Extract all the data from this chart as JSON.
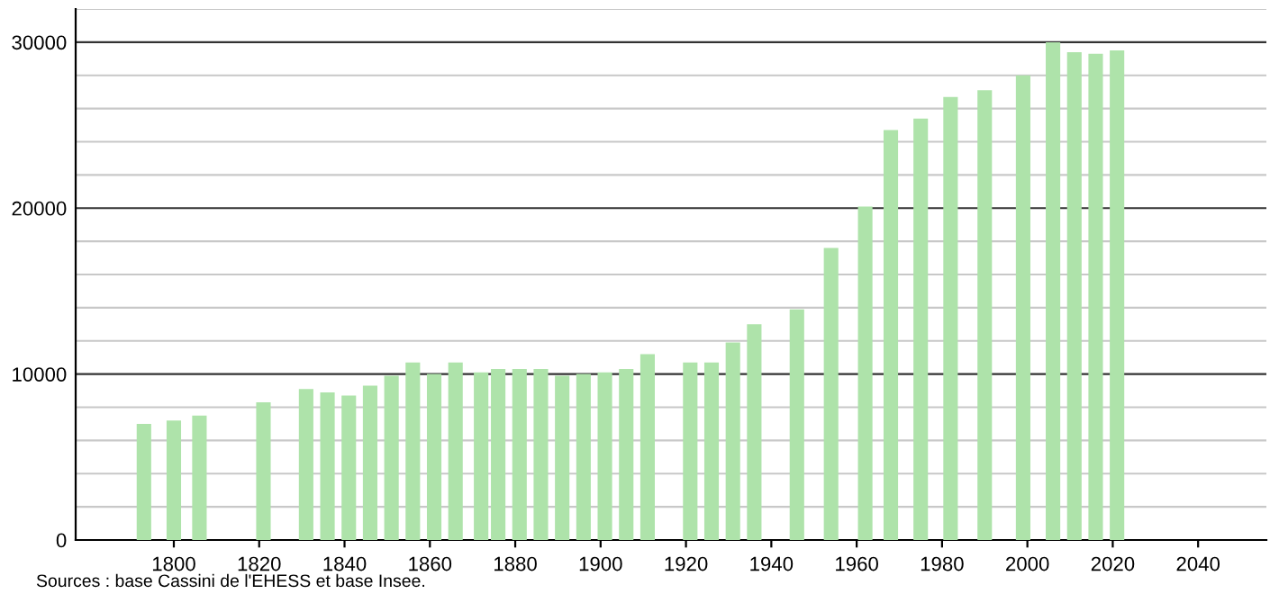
{
  "chart_data": {
    "type": "bar",
    "color": "#aee3aa",
    "x": [
      1793,
      1800,
      1806,
      1821,
      1831,
      1836,
      1841,
      1846,
      1851,
      1856,
      1861,
      1866,
      1872,
      1876,
      1881,
      1886,
      1891,
      1896,
      1901,
      1906,
      1911,
      1921,
      1926,
      1931,
      1936,
      1946,
      1954,
      1962,
      1968,
      1975,
      1982,
      1990,
      1999,
      2006,
      2011,
      2016,
      2021
    ],
    "values": [
      7000,
      7200,
      7500,
      8300,
      9100,
      8900,
      8700,
      9300,
      9900,
      10700,
      10000,
      10700,
      10100,
      10300,
      10300,
      10300,
      9900,
      10000,
      10100,
      10300,
      11200,
      10700,
      10700,
      11900,
      13000,
      13900,
      17600,
      20100,
      24700,
      25400,
      26700,
      27100,
      28000,
      30000,
      29400,
      29300,
      29500
    ],
    "xlim": [
      1777,
      2056
    ],
    "xticks": [
      1800,
      1820,
      1840,
      1860,
      1880,
      1900,
      1920,
      1940,
      1960,
      1980,
      2000,
      2020,
      2040
    ],
    "ylim": [
      0,
      32000
    ],
    "yticks": [
      0,
      {
        "value": 2000,
        "label": null
      },
      {
        "value": 4000,
        "label": null
      },
      {
        "value": 6000,
        "label": null
      },
      {
        "value": 8000,
        "label": null
      },
      10000,
      {
        "value": 12000,
        "label": null
      },
      {
        "value": 14000,
        "label": null
      },
      {
        "value": 16000,
        "label": null
      },
      {
        "value": 18000,
        "label": null
      },
      20000,
      {
        "value": 22000,
        "label": null
      },
      {
        "value": 24000,
        "label": null
      },
      {
        "value": 26000,
        "label": null
      },
      {
        "value": 28000,
        "label": null
      },
      30000,
      {
        "value": 32000,
        "label": null
      }
    ],
    "grid": "y",
    "annotations": [
      "Sources : base Cassini de l'EHESS et base Insee."
    ]
  }
}
